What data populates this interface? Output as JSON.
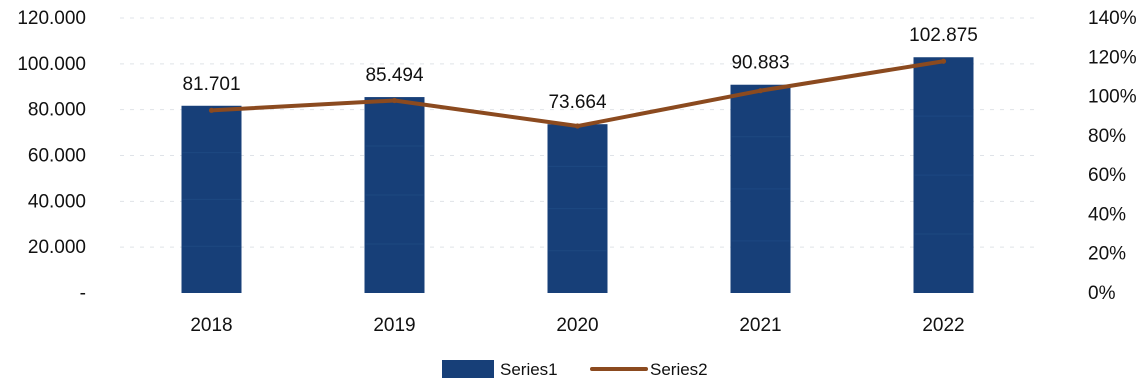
{
  "chart_data": {
    "type": "bar",
    "categories": [
      "2018",
      "2019",
      "2020",
      "2021",
      "2022"
    ],
    "series": [
      {
        "name": "Series1",
        "type": "bar",
        "axis": "left",
        "values": [
          81701,
          85494,
          73664,
          90883,
          102875
        ],
        "labels": [
          "81.701",
          "85.494",
          "73.664",
          "90.883",
          "102.875"
        ],
        "color": "#173f78"
      },
      {
        "name": "Series2",
        "type": "line",
        "axis": "right",
        "values": [
          0.93,
          0.98,
          0.85,
          1.03,
          1.18
        ],
        "color": "#8b4a1f"
      }
    ],
    "y_left": {
      "ylim": [
        0,
        120000
      ],
      "ticks": [
        {
          "value": 0,
          "label": "-"
        },
        {
          "value": 20000,
          "label": "20.000"
        },
        {
          "value": 40000,
          "label": "40.000"
        },
        {
          "value": 60000,
          "label": "60.000"
        },
        {
          "value": 80000,
          "label": "80.000"
        },
        {
          "value": 100000,
          "label": "100.000"
        },
        {
          "value": 120000,
          "label": "120.000"
        }
      ]
    },
    "y_right": {
      "ylim": [
        0,
        1.4
      ],
      "ticks": [
        {
          "value": 0,
          "label": "0%"
        },
        {
          "value": 0.2,
          "label": "20%"
        },
        {
          "value": 0.4,
          "label": "40%"
        },
        {
          "value": 0.6,
          "label": "60%"
        },
        {
          "value": 0.8,
          "label": "80%"
        },
        {
          "value": 1.0,
          "label": "100%"
        },
        {
          "value": 1.2,
          "label": "120%"
        },
        {
          "value": 1.4,
          "label": "140%"
        }
      ]
    },
    "title": "",
    "xlabel": "",
    "ylabel": "",
    "grid": true,
    "legend_position": "bottom"
  }
}
